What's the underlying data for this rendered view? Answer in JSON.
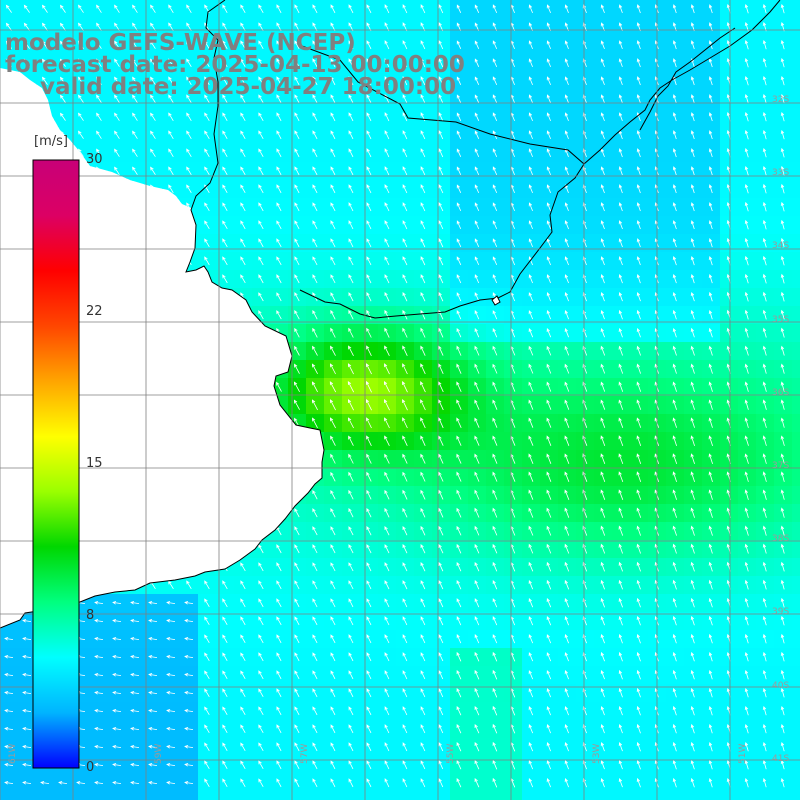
{
  "title": {
    "model": "modelo GEFS-WAVE (NCEP)",
    "forecast": "forecast date: 2025-04-13 00:00:00",
    "valid": "valid date: 2025-04-27 18:00:00"
  },
  "colorbar": {
    "unit": "[m/s]",
    "min": 0,
    "max": 30,
    "ticks": [
      "0",
      "8",
      "15",
      "22",
      "30"
    ],
    "tick_values": [
      0,
      7.5,
      15,
      22.5,
      30
    ],
    "stops": [
      "#0000ff",
      "#00b4ff",
      "#00ffff",
      "#00ff7f",
      "#00d700",
      "#9bff00",
      "#ffff00",
      "#ffa500",
      "#ff4600",
      "#ff0000",
      "#dc0064",
      "#c80078"
    ]
  },
  "grid": {
    "lat_labels": [
      "32S",
      "33S",
      "34S",
      "35S",
      "36S",
      "37S",
      "38S",
      "39S",
      "40S",
      "41S"
    ],
    "lon_labels": [
      "61W",
      "59W",
      "57W",
      "55W",
      "53W",
      "51W"
    ]
  },
  "colors": {
    "land": "#ffffff",
    "coast": "#000000",
    "gridline": "#7f7f7f",
    "arrow": "#ffffff",
    "title": "#808080"
  },
  "icons": {
    "wind_vector": "wind-arrow-icon"
  }
}
